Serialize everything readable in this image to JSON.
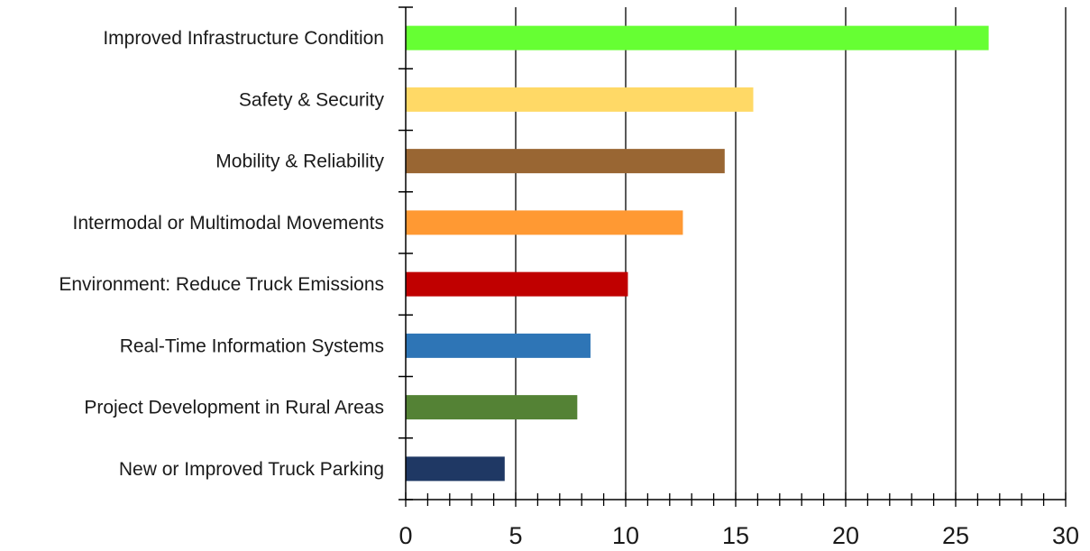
{
  "chart_data": {
    "type": "bar",
    "orientation": "horizontal",
    "title": "",
    "xlabel": "",
    "ylabel": "",
    "categories": [
      "Improved Infrastructure Condition",
      "Safety & Security",
      "Mobility & Reliability",
      "Intermodal or Multimodal Movements",
      "Environment: Reduce Truck Emissions",
      "Real-Time Information Systems",
      "Project Development in Rural Areas",
      "New or Improved Truck Parking"
    ],
    "values": [
      26.5,
      15.8,
      14.5,
      12.6,
      10.1,
      8.4,
      7.8,
      4.5
    ],
    "colors": [
      "#66ff33",
      "#ffd966",
      "#996633",
      "#ff9933",
      "#c00000",
      "#2e75b6",
      "#548235",
      "#1f3864"
    ],
    "xlim": [
      0,
      30
    ],
    "x_ticks": [
      "0",
      "5",
      "10",
      "15",
      "20",
      "25",
      "30"
    ],
    "x_minor_step": 1,
    "grid": "vertical major gridlines",
    "legend": "none"
  }
}
